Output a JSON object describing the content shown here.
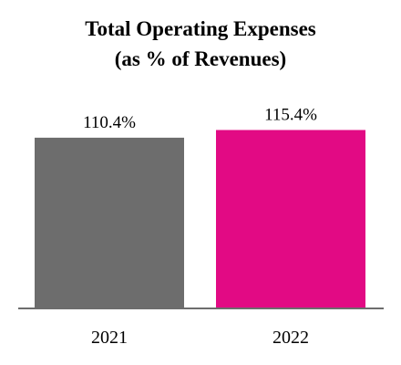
{
  "chart_data": {
    "type": "bar",
    "title": "Total Operating Expenses",
    "subtitle": "(as % of Revenues)",
    "categories": [
      "2021",
      "2022"
    ],
    "values": [
      110.4,
      115.4
    ],
    "data_labels": [
      "110.4%",
      "115.4%"
    ],
    "bar_colors": [
      "#6d6d6d",
      "#e20a84"
    ],
    "axis_color": "#6d6d6d",
    "ylim": [
      0,
      120
    ],
    "grid": false,
    "legend": "none"
  }
}
